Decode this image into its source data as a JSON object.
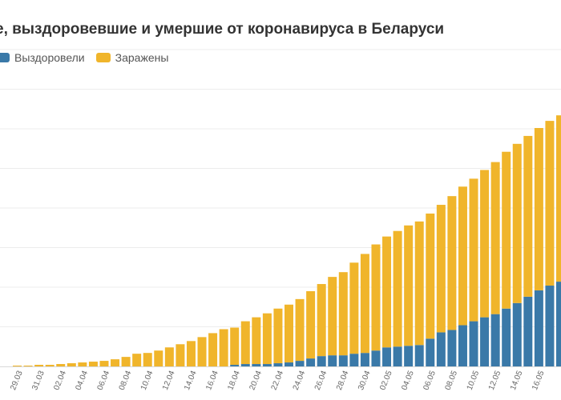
{
  "chart_data": {
    "type": "bar",
    "stacked": true,
    "title": "е, выздоровевшие и умершие от коронавируса в Беларуси",
    "legend": {
      "placement": "top-left",
      "items": [
        {
          "label": "Выздоровели",
          "color": "#3a79a8"
        },
        {
          "label": "Заражены",
          "color": "#f0b52b"
        }
      ]
    },
    "grid": true,
    "ylim": [
      0,
      40000
    ],
    "tick_labels": [
      "29.03",
      "31.03",
      "02.04",
      "04.04",
      "06.04",
      "08.04",
      "10.04",
      "12.04",
      "14.04",
      "16.04",
      "18.04",
      "20.04",
      "22.04",
      "24.04",
      "26.04",
      "28.04",
      "30.04",
      "02.05",
      "04.05",
      "06.05",
      "08.05",
      "10.05",
      "12.05",
      "14.05",
      "16.05"
    ],
    "categories": [
      "29.03",
      "30.03",
      "31.03",
      "01.04",
      "02.04",
      "03.04",
      "04.04",
      "05.04",
      "06.04",
      "07.04",
      "08.04",
      "09.04",
      "10.04",
      "11.04",
      "12.04",
      "13.04",
      "14.04",
      "15.04",
      "16.04",
      "17.04",
      "18.04",
      "19.04",
      "20.04",
      "21.04",
      "22.04",
      "23.04",
      "24.04",
      "25.04",
      "26.04",
      "27.04",
      "28.04",
      "29.04",
      "30.04",
      "01.05",
      "02.05",
      "03.05",
      "04.05",
      "05.05",
      "06.05",
      "07.05",
      "08.05",
      "09.05",
      "10.05",
      "11.05",
      "12.05",
      "13.05",
      "14.05",
      "15.05",
      "16.05",
      "17.05",
      "18.05"
    ],
    "series": [
      {
        "name": "Выздоровели",
        "color": "#3a79a8",
        "values": [
          0,
          0,
          0,
          0,
          0,
          0,
          0,
          0,
          0,
          0,
          0,
          0,
          0,
          0,
          0,
          0,
          0,
          0,
          0,
          0,
          200,
          300,
          300,
          300,
          400,
          500,
          700,
          1000,
          1300,
          1400,
          1400,
          1600,
          1700,
          2000,
          2400,
          2500,
          2600,
          2700,
          3500,
          4300,
          4600,
          5200,
          5700,
          6200,
          6600,
          7300,
          8000,
          8800,
          9600,
          10200,
          10700
        ]
      },
      {
        "name": "Заражены",
        "color": "#f0b52b",
        "values": [
          100,
          100,
          200,
          200,
          300,
          400,
          500,
          600,
          700,
          900,
          1200,
          1600,
          1700,
          2000,
          2400,
          2800,
          3200,
          3700,
          4200,
          4700,
          4700,
          5400,
          5900,
          6400,
          6900,
          7300,
          7800,
          8500,
          9100,
          9900,
          10500,
          11500,
          12500,
          13400,
          14000,
          14600,
          15200,
          15600,
          15800,
          16100,
          16900,
          17500,
          18000,
          18600,
          19200,
          19800,
          20100,
          20300,
          20500,
          20800,
          21000
        ]
      }
    ]
  }
}
